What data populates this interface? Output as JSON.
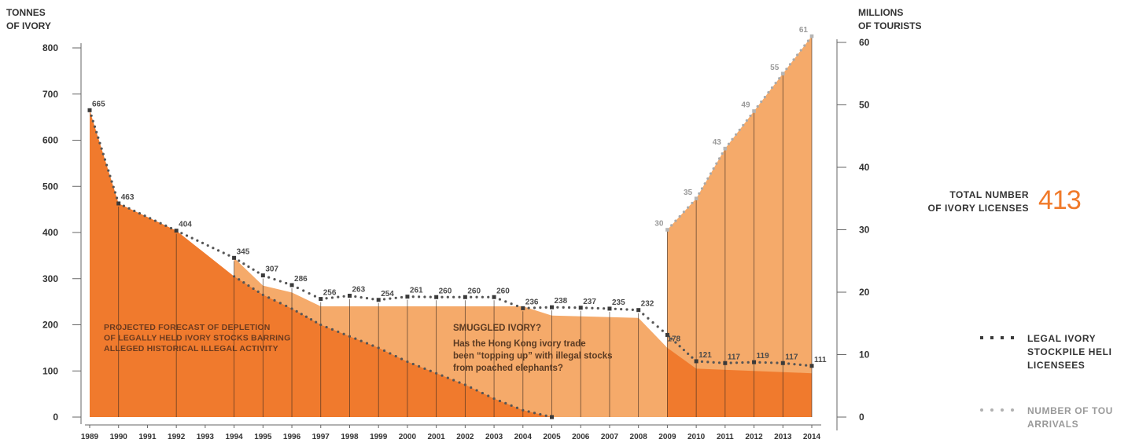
{
  "left_axis_title": [
    "TONNES",
    "OF IVORY"
  ],
  "right_axis_title": [
    "MILLIONS",
    "OF TOURISTS"
  ],
  "colors": {
    "ivory_area": "#f07a2d",
    "smuggled_area": "#f5aa6a",
    "tourist_area": "#f5aa6a",
    "legal_line": "#555555",
    "tourist_line": "#aaaaaa",
    "accent": "#f07a2a"
  },
  "chart_data": {
    "type": "area",
    "x": [
      "1989",
      "1990",
      "1991",
      "1992",
      "1993",
      "1994",
      "1995",
      "1996",
      "1997",
      "1998",
      "1999",
      "2000",
      "2001",
      "2002",
      "2003",
      "2004",
      "2005",
      "2006",
      "2007",
      "2008",
      "2009",
      "2010",
      "2011",
      "2012",
      "2013",
      "2014"
    ],
    "left_axis": {
      "ticks": [
        "0",
        "100",
        "200",
        "300",
        "400",
        "500",
        "600",
        "700",
        "800"
      ],
      "ylim": [
        0,
        800
      ]
    },
    "right_axis": {
      "ticks": [
        "0",
        "10",
        "20",
        "30",
        "40",
        "50",
        "60"
      ],
      "ylim": [
        0,
        60
      ]
    },
    "series": [
      {
        "name": "LEGAL IVORY STOCKPILE HELD BY LICENSEES",
        "axis": "left",
        "style": "dark-dots",
        "points": [
          [
            1989,
            665
          ],
          [
            1990,
            463
          ],
          [
            1992,
            404
          ],
          [
            1994,
            345
          ],
          [
            1995,
            307
          ],
          [
            1996,
            286
          ],
          [
            1997,
            256
          ],
          [
            1998,
            263
          ],
          [
            1999,
            254
          ],
          [
            2000,
            261
          ],
          [
            2001,
            260
          ],
          [
            2002,
            260
          ],
          [
            2003,
            260
          ],
          [
            2004,
            236
          ],
          [
            2005,
            238
          ],
          [
            2006,
            237
          ],
          [
            2007,
            235
          ],
          [
            2008,
            232
          ],
          [
            2009,
            178
          ],
          [
            2010,
            121
          ],
          [
            2011,
            117
          ],
          [
            2012,
            119
          ],
          [
            2013,
            117
          ],
          [
            2014,
            111
          ]
        ],
        "labels": [
          "665",
          "463",
          "404",
          "345",
          "307",
          "286",
          "256",
          "263",
          "254",
          "261",
          "260",
          "260",
          "260",
          "236",
          "238",
          "237",
          "235",
          "232",
          "178",
          "121",
          "117",
          "119",
          "117",
          "111"
        ]
      },
      {
        "name": "PROJECTED FORECAST OF DEPLETION OF LEGALLY HELD IVORY STOCKS BARRING ALLEGED HISTORICAL ILLEGAL ACTIVITY",
        "axis": "left",
        "style": "dark-dots-area",
        "points": [
          [
            1989,
            665
          ],
          [
            1990,
            463
          ],
          [
            1992,
            404
          ],
          [
            1994,
            305
          ],
          [
            1995,
            265
          ],
          [
            1996,
            235
          ],
          [
            1997,
            200
          ],
          [
            1998,
            175
          ],
          [
            1999,
            150
          ],
          [
            2000,
            120
          ],
          [
            2001,
            95
          ],
          [
            2002,
            70
          ],
          [
            2003,
            40
          ],
          [
            2004,
            15
          ],
          [
            2005,
            0
          ]
        ]
      },
      {
        "name": "SMUGGLED IVORY?",
        "axis": "left",
        "style": "light-area",
        "points": [
          [
            1994,
            345
          ],
          [
            1995,
            285
          ],
          [
            1996,
            270
          ],
          [
            1997,
            240
          ],
          [
            2004,
            240
          ],
          [
            2005,
            220
          ],
          [
            2008,
            215
          ],
          [
            2009,
            150
          ],
          [
            2010,
            105
          ],
          [
            2014,
            95
          ]
        ]
      },
      {
        "name": "NUMBER OF TOURIST ARRIVALS",
        "axis": "right",
        "style": "light-dots-area",
        "points": [
          [
            2009,
            30
          ],
          [
            2010,
            35
          ],
          [
            2011,
            43
          ],
          [
            2012,
            49
          ],
          [
            2013,
            55
          ],
          [
            2014,
            61
          ]
        ],
        "labels": [
          "30",
          "35",
          "43",
          "49",
          "55",
          "61"
        ]
      }
    ],
    "annotations": {
      "projection": [
        "PROJECTED FORECAST OF DEPLETION",
        "OF LEGALLY HELD IVORY STOCKS BARRING",
        "ALLEGED HISTORICAL ILLEGAL ACTIVITY"
      ],
      "smuggled_title": "SMUGGLED IVORY?",
      "smuggled_text": [
        "Has the Hong Kong ivory trade",
        "been “topping up” with illegal stocks",
        "from poached elephants?"
      ]
    }
  },
  "licenses": {
    "label": [
      "TOTAL NUMBER",
      "OF IVORY LICENSES"
    ],
    "value": "413"
  },
  "legend": [
    {
      "label": [
        "LEGAL IVORY",
        "STOCKPILE HELI",
        "LICENSEES"
      ],
      "style": "dark"
    },
    {
      "label": [
        "NUMBER OF TOU",
        "ARRIVALS"
      ],
      "style": "light"
    }
  ]
}
